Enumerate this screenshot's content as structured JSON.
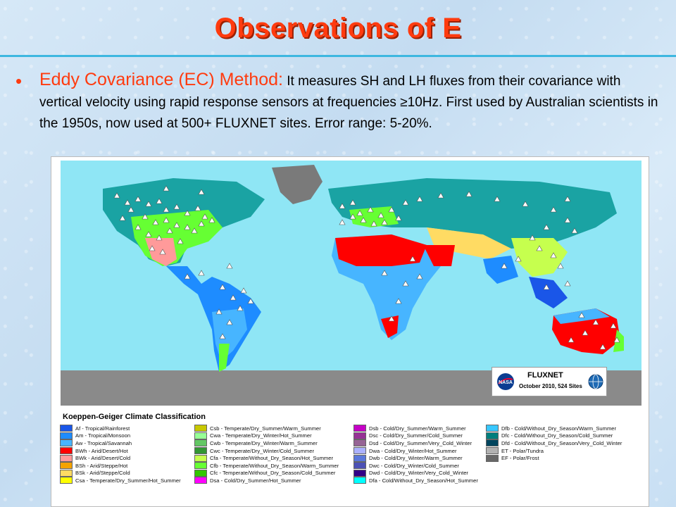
{
  "title": "Observations of E",
  "bullet": {
    "symbol": "•",
    "lead": "Eddy Covariance (EC) Method:",
    "body": " It measures SH and LH fluxes from their covariance with vertical velocity using rapid response sensors at frequencies ≥10Hz.  First used by Australian scientists in the 1950s, now used at 500+ FLUXNET sites. Error range: 5-20%."
  },
  "map": {
    "badge": {
      "logo_left": "NASA",
      "logo_right_icon": "fluxnet-globe-icon",
      "title": "FLUXNET",
      "subtitle": "October 2010, 524 Sites"
    },
    "legend_title": "Koeppen-Geiger Climate Classification",
    "legend": [
      [
        {
          "label": "Af - Tropical/Rainforest",
          "color": "#1a56e8"
        },
        {
          "label": "Am - Tropical/Monsoon",
          "color": "#1e8cff"
        },
        {
          "label": "Aw - Tropical/Savannah",
          "color": "#47b5ff"
        },
        {
          "label": "BWh - Arid/Desert/Hot",
          "color": "#ff0000"
        },
        {
          "label": "BWk - Arid/Desert/Cold",
          "color": "#ff9a9a"
        },
        {
          "label": "BSh - Arid/Steppe/Hot",
          "color": "#f5a300"
        },
        {
          "label": "BSk - Arid/Steppe/Cold",
          "color": "#ffdb63"
        },
        {
          "label": "Csa - Temperate/Dry_Summer/Hot_Summer",
          "color": "#ffff00"
        }
      ],
      [
        {
          "label": "Csb - Temperate/Dry_Summer/Warm_Summer",
          "color": "#c8c800"
        },
        {
          "label": "Cwa - Temperate/Dry_Winter/Hot_Summer",
          "color": "#96ff96"
        },
        {
          "label": "Cwb - Temperate/Dry_Winter/Warm_Summer",
          "color": "#63c764"
        },
        {
          "label": "Cwc - Temperate/Dry_Winter/Cold_Summer",
          "color": "#329633"
        },
        {
          "label": "Cfa - Temperate/Without_Dry_Season/Hot_Summer",
          "color": "#c6ff4e"
        },
        {
          "label": "Cfb - Temperate/Without_Dry_Season/Warm_Summer",
          "color": "#66ff33"
        },
        {
          "label": "Cfc - Temperate/Without_Dry_Season/Cold_Summer",
          "color": "#33c701"
        },
        {
          "label": "Dsa - Cold/Dry_Summer/Hot_Summer",
          "color": "#ff00fe"
        }
      ],
      [
        {
          "label": "Dsb - Cold/Dry_Summer/Warm_Summer",
          "color": "#c600c7"
        },
        {
          "label": "Dsc - Cold/Dry_Summer/Cold_Summer",
          "color": "#963295"
        },
        {
          "label": "Dsd - Cold/Dry_Summer/Very_Cold_Winter",
          "color": "#966495"
        },
        {
          "label": "Dwa - Cold/Dry_Winter/Hot_Summer",
          "color": "#abb1ff"
        },
        {
          "label": "Dwb - Cold/Dry_Winter/Warm_Summer",
          "color": "#5a77db"
        },
        {
          "label": "Dwc - Cold/Dry_Winter/Cold_Summer",
          "color": "#4c51b5"
        },
        {
          "label": "Dwd - Cold/Dry_Winter/Very_Cold_Winter",
          "color": "#320087"
        },
        {
          "label": "Dfa - Cold/Without_Dry_Season/Hot_Summer",
          "color": "#00ffff"
        }
      ],
      [
        {
          "label": "Dfb - Cold/Without_Dry_Season/Warm_Summer",
          "color": "#38c7ff"
        },
        {
          "label": "Dfc - Cold/Without_Dry_Season/Cold_Summer",
          "color": "#007e7d"
        },
        {
          "label": "Dfd - Cold/Without_Dry_Season/Very_Cold_Winter",
          "color": "#00455e"
        },
        {
          "label": "ET - Polar/Tundra",
          "color": "#b2b2b2"
        },
        {
          "label": "EF - Polar/Frost",
          "color": "#686868"
        }
      ]
    ],
    "colors": {
      "ocean": "#8fe6f5",
      "antarctica": "#8a8a8a",
      "greenland": "#7a7a7a",
      "boreal": "#1aa3a3",
      "site": "#ffffff"
    }
  }
}
